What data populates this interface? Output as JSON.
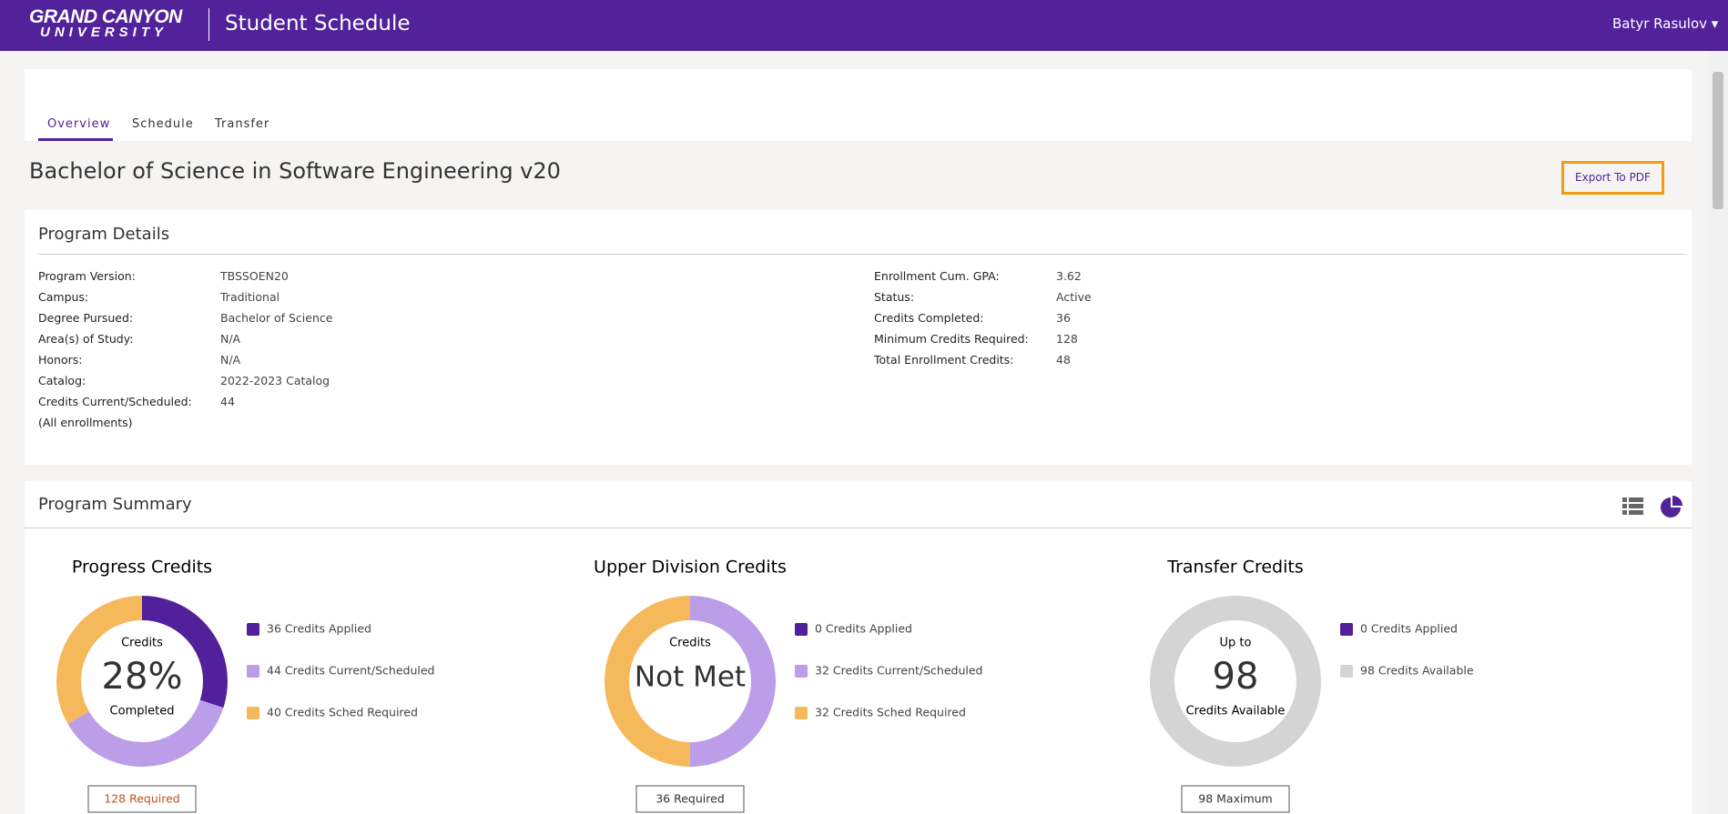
{
  "header": {
    "logo_line1": "GRAND CANYON",
    "logo_line2": "UNIVERSITY",
    "app_title": "Student Schedule",
    "user": "Batyr Rasulov"
  },
  "tabs": [
    "Overview",
    "Schedule",
    "Transfer"
  ],
  "program_title": "Bachelor of Science in Software Engineering v20",
  "export_button": "Export To PDF",
  "program_details": {
    "title": "Program Details",
    "left": [
      [
        "Program Version:",
        "TBSSOEN20"
      ],
      [
        "Campus:",
        "Traditional"
      ],
      [
        "Degree Pursued:",
        "Bachelor of Science"
      ],
      [
        "Area(s) of Study:",
        "N/A"
      ],
      [
        "Honors:",
        "N/A"
      ],
      [
        "Catalog:",
        "2022-2023 Catalog"
      ],
      [
        "Credits Current/Scheduled:",
        "44"
      ]
    ],
    "left_note": "(All enrollments)",
    "right": [
      [
        "Enrollment Cum. GPA:",
        "3.62"
      ],
      [
        "Status:",
        "Active"
      ],
      [
        "Credits Completed:",
        "36"
      ],
      [
        "Minimum Credits Required:",
        "128"
      ],
      [
        "Total Enrollment Credits:",
        "48"
      ]
    ]
  },
  "program_summary": {
    "title": "Program Summary",
    "charts": [
      {
        "title": "Progress Credits",
        "center_top": "Credits",
        "center_main": "28%",
        "center_bottom": "Completed",
        "footer": "128 Required",
        "footer_color": "#c0501c",
        "items": [
          {
            "label": "36 Credits Applied",
            "value": 36,
            "color": "#51209a"
          },
          {
            "label": "44 Credits Current/Scheduled",
            "value": 44,
            "color": "#bb9de8"
          },
          {
            "label": "40 Credits Sched Required",
            "value": 40,
            "color": "#f5b95c"
          }
        ]
      },
      {
        "title": "Upper Division Credits",
        "center_top": "Credits",
        "center_main": "Not Met",
        "footer": "36 Required",
        "footer_color": "#333333",
        "items": [
          {
            "label": "0 Credits Applied",
            "value": 0,
            "color": "#51209a"
          },
          {
            "label": "32 Credits Current/Scheduled",
            "value": 32,
            "color": "#bb9de8"
          },
          {
            "label": "32 Credits Sched Required",
            "value": 32,
            "color": "#f5b95c"
          }
        ]
      },
      {
        "title": "Transfer Credits",
        "center_top": "Up to",
        "center_main": "98",
        "center_bottom": "Credits Available",
        "footer": "98 Maximum",
        "footer_color": "#333333",
        "items": [
          {
            "label": "0 Credits Applied",
            "value": 0,
            "color": "#51209a"
          },
          {
            "label": "98 Credits Available",
            "value": 98,
            "color": "#d4d4d4"
          }
        ]
      }
    ]
  }
}
